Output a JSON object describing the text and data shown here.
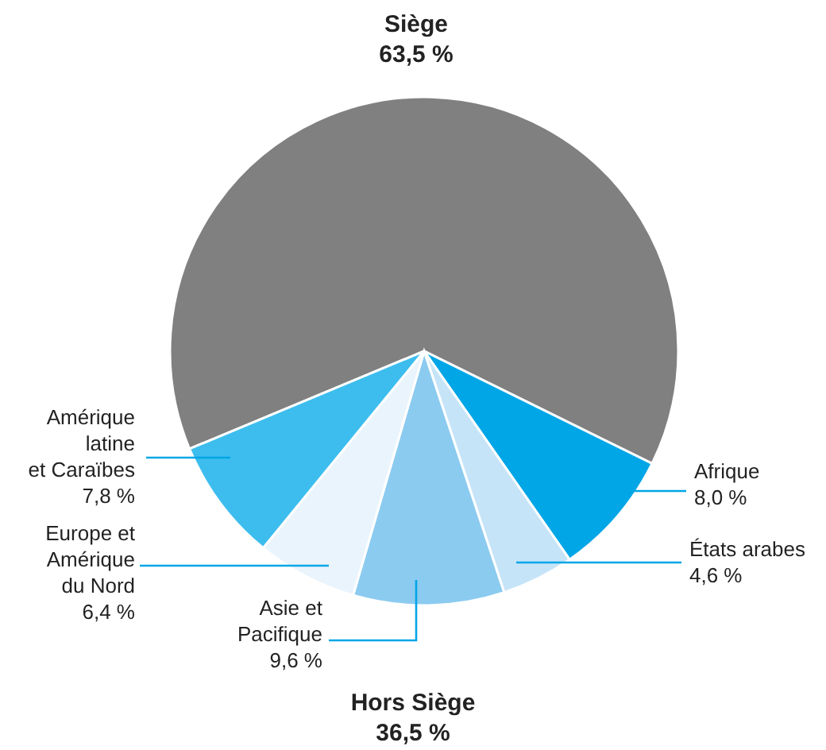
{
  "chart_data": {
    "type": "pie",
    "categories": [
      "Siège",
      "Afrique",
      "États arabes",
      "Asie et Pacifique",
      "Europe et Amérique du Nord",
      "Amérique latine et Caraïbes"
    ],
    "values": [
      63.5,
      8.0,
      4.6,
      9.6,
      6.4,
      7.8
    ],
    "value_labels": [
      "63,5 %",
      "8,0 %",
      "4,6 %",
      "9,6 %",
      "6,4 %",
      "7,8 %"
    ],
    "colors": [
      "#808080",
      "#00a6e6",
      "#c6e4f8",
      "#8ccbf0",
      "#eaf4fc",
      "#3dbdee"
    ],
    "annotations": [
      "Hors Siège",
      "36,5 %"
    ]
  }
}
